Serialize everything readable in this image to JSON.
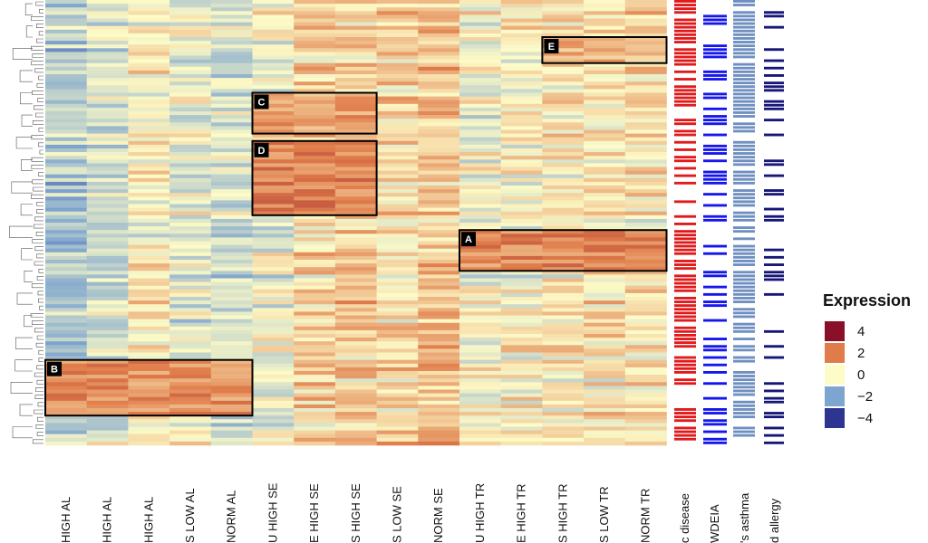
{
  "chart_data": {
    "type": "heatmap",
    "columns": [
      "HIGH AL",
      "HIGH AL",
      "HIGH AL",
      "S LOW AL",
      "NORM AL",
      "U HIGH SE",
      "E HIGH SE",
      "S HIGH SE",
      "S LOW SE",
      "NORM SE",
      "U HIGH TR",
      "E HIGH TR",
      "S HIGH TR",
      "S LOW TR",
      "NORM TR"
    ],
    "annotation_columns": [
      "c disease",
      "WDEIA",
      "'s asthma",
      "d allergy"
    ],
    "annotation_colors": [
      "#e0191b",
      "#1515ee",
      "#6f8fc0",
      "#161679"
    ],
    "n_rows": 120,
    "column_trend": [
      -1.4,
      -0.8,
      0.1,
      -0.4,
      -0.7,
      -0.3,
      0.7,
      0.8,
      0.6,
      1.0,
      -0.2,
      0.1,
      0.3,
      0.4,
      0.4
    ],
    "highlight_boxes": [
      {
        "label": "A",
        "columns": [
          10,
          14
        ],
        "rows": [
          62,
          72
        ],
        "mean": 1.8
      },
      {
        "label": "B",
        "columns": [
          0,
          4
        ],
        "rows": [
          97,
          111
        ],
        "mean": 1.7
      },
      {
        "label": "C",
        "columns": [
          5,
          7
        ],
        "rows": [
          25,
          35
        ],
        "mean": 1.4
      },
      {
        "label": "D",
        "columns": [
          5,
          7
        ],
        "rows": [
          38,
          57
        ],
        "mean": 1.9
      },
      {
        "label": "E",
        "columns": [
          12,
          14
        ],
        "rows": [
          10,
          16
        ],
        "mean": 1.1
      }
    ],
    "color_scale": {
      "min": -4,
      "max": 4,
      "colors": [
        "#2d3590",
        "#7ea5cf",
        "#fdfbc7",
        "#e07c4a",
        "#8a0f29"
      ]
    },
    "legend": {
      "title": "Expression",
      "ticks": [
        "4",
        "2",
        "0",
        "−2",
        "−4"
      ],
      "position": "right"
    }
  }
}
